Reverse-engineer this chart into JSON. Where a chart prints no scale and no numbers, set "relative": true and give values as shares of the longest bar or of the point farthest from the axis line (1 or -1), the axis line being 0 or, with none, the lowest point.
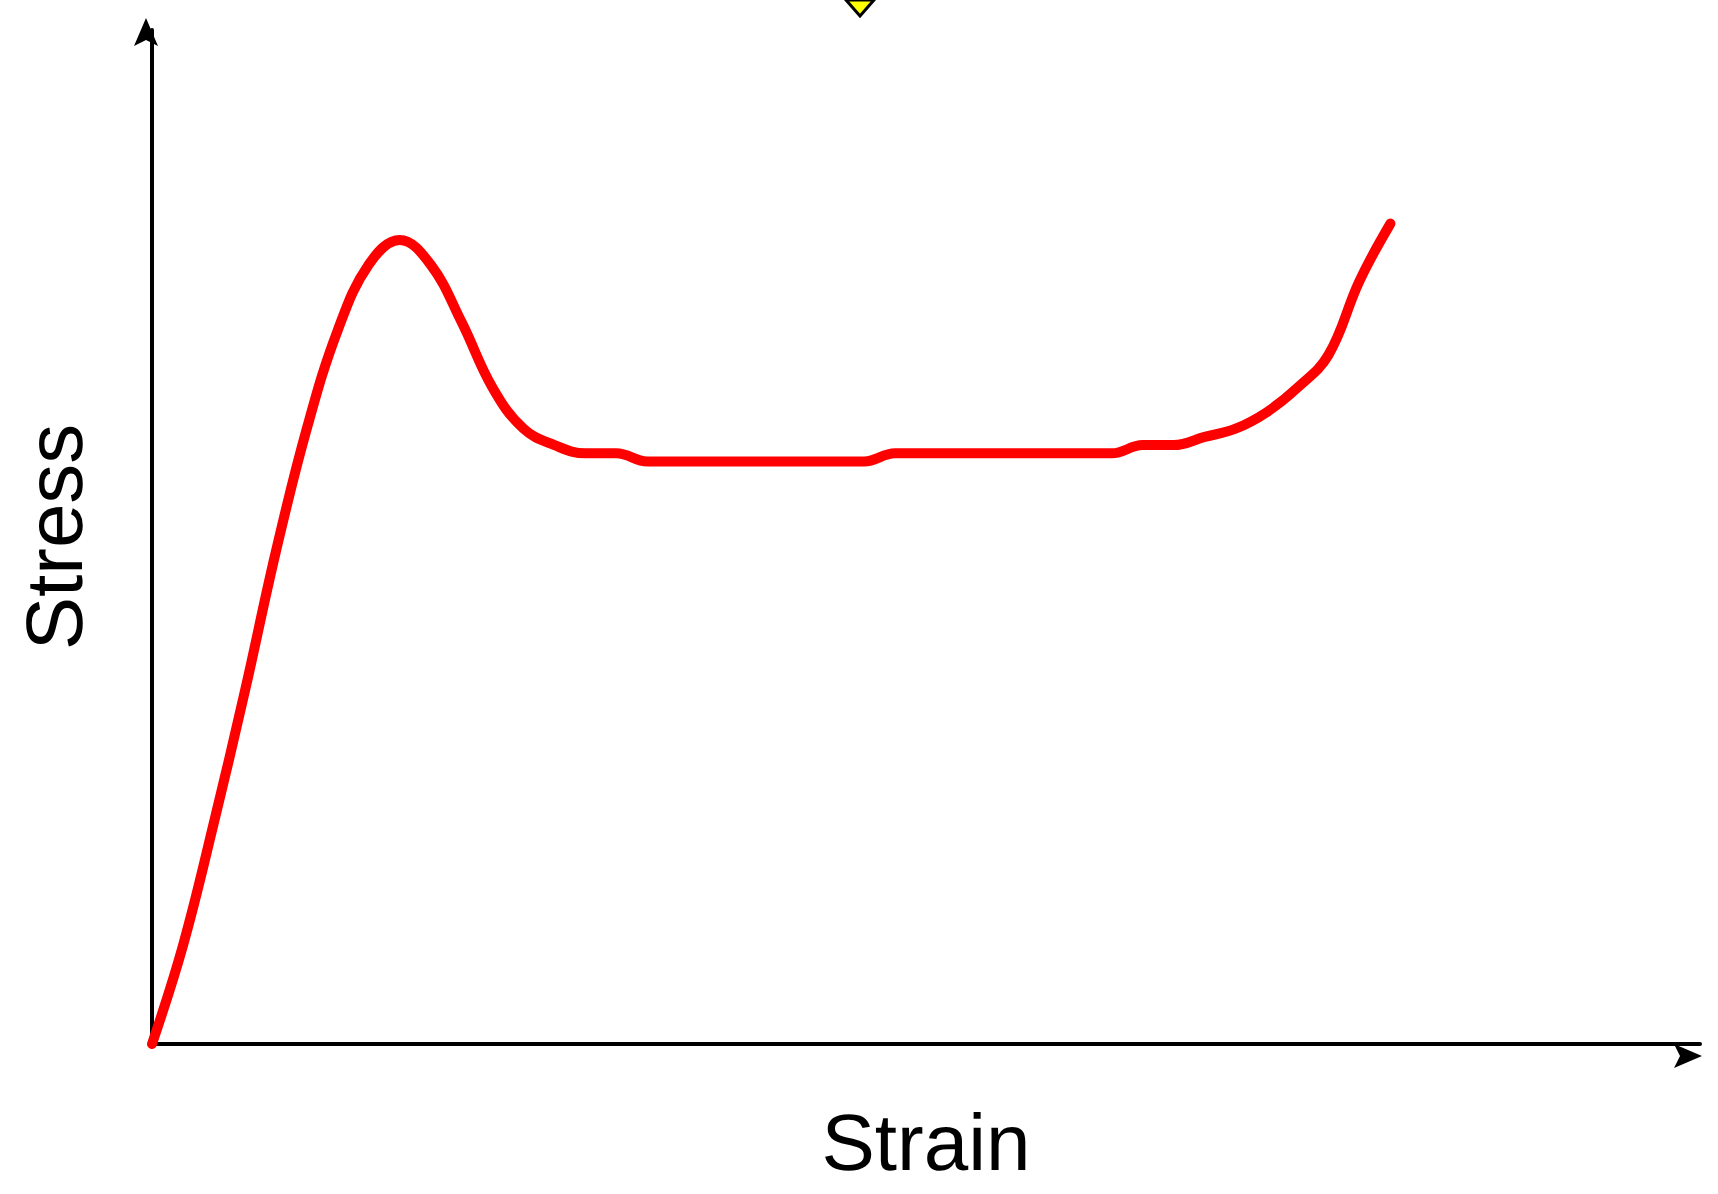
{
  "chart_data": {
    "type": "line",
    "relative": true,
    "xlabel": "Strain",
    "ylabel": "Stress",
    "grid": false,
    "marker": "none",
    "line_style": "solid",
    "categories": [
      null,
      null,
      null,
      null,
      null,
      null,
      null,
      null,
      null,
      null,
      null,
      null,
      null,
      null,
      null,
      null,
      null,
      null,
      null,
      null,
      null,
      null,
      null,
      null,
      null,
      null,
      null,
      null,
      null,
      null,
      null,
      null,
      null,
      null,
      null,
      null,
      null,
      null,
      null,
      null,
      null,
      null,
      null,
      null,
      null,
      null,
      null,
      null,
      null,
      null,
      null
    ],
    "series": [
      {
        "color": "#ff0000",
        "values": [
          0,
          0.12,
          0.27,
          0.43,
          0.6,
          0.75,
          0.87,
          0.95,
          0.98,
          0.95,
          0.88,
          0.8,
          0.75,
          0.73,
          0.72,
          0.72,
          0.71,
          0.71,
          0.71,
          0.71,
          0.71,
          0.71,
          0.71,
          0.71,
          0.72,
          0.72,
          0.72,
          0.72,
          0.72,
          0.72,
          0.72,
          0.72,
          0.73,
          0.73,
          0.74,
          0.75,
          0.77,
          0.8,
          0.84,
          0.93,
          1,
          null,
          null,
          null,
          null,
          null,
          null,
          null,
          null,
          null,
          null
        ]
      }
    ]
  }
}
